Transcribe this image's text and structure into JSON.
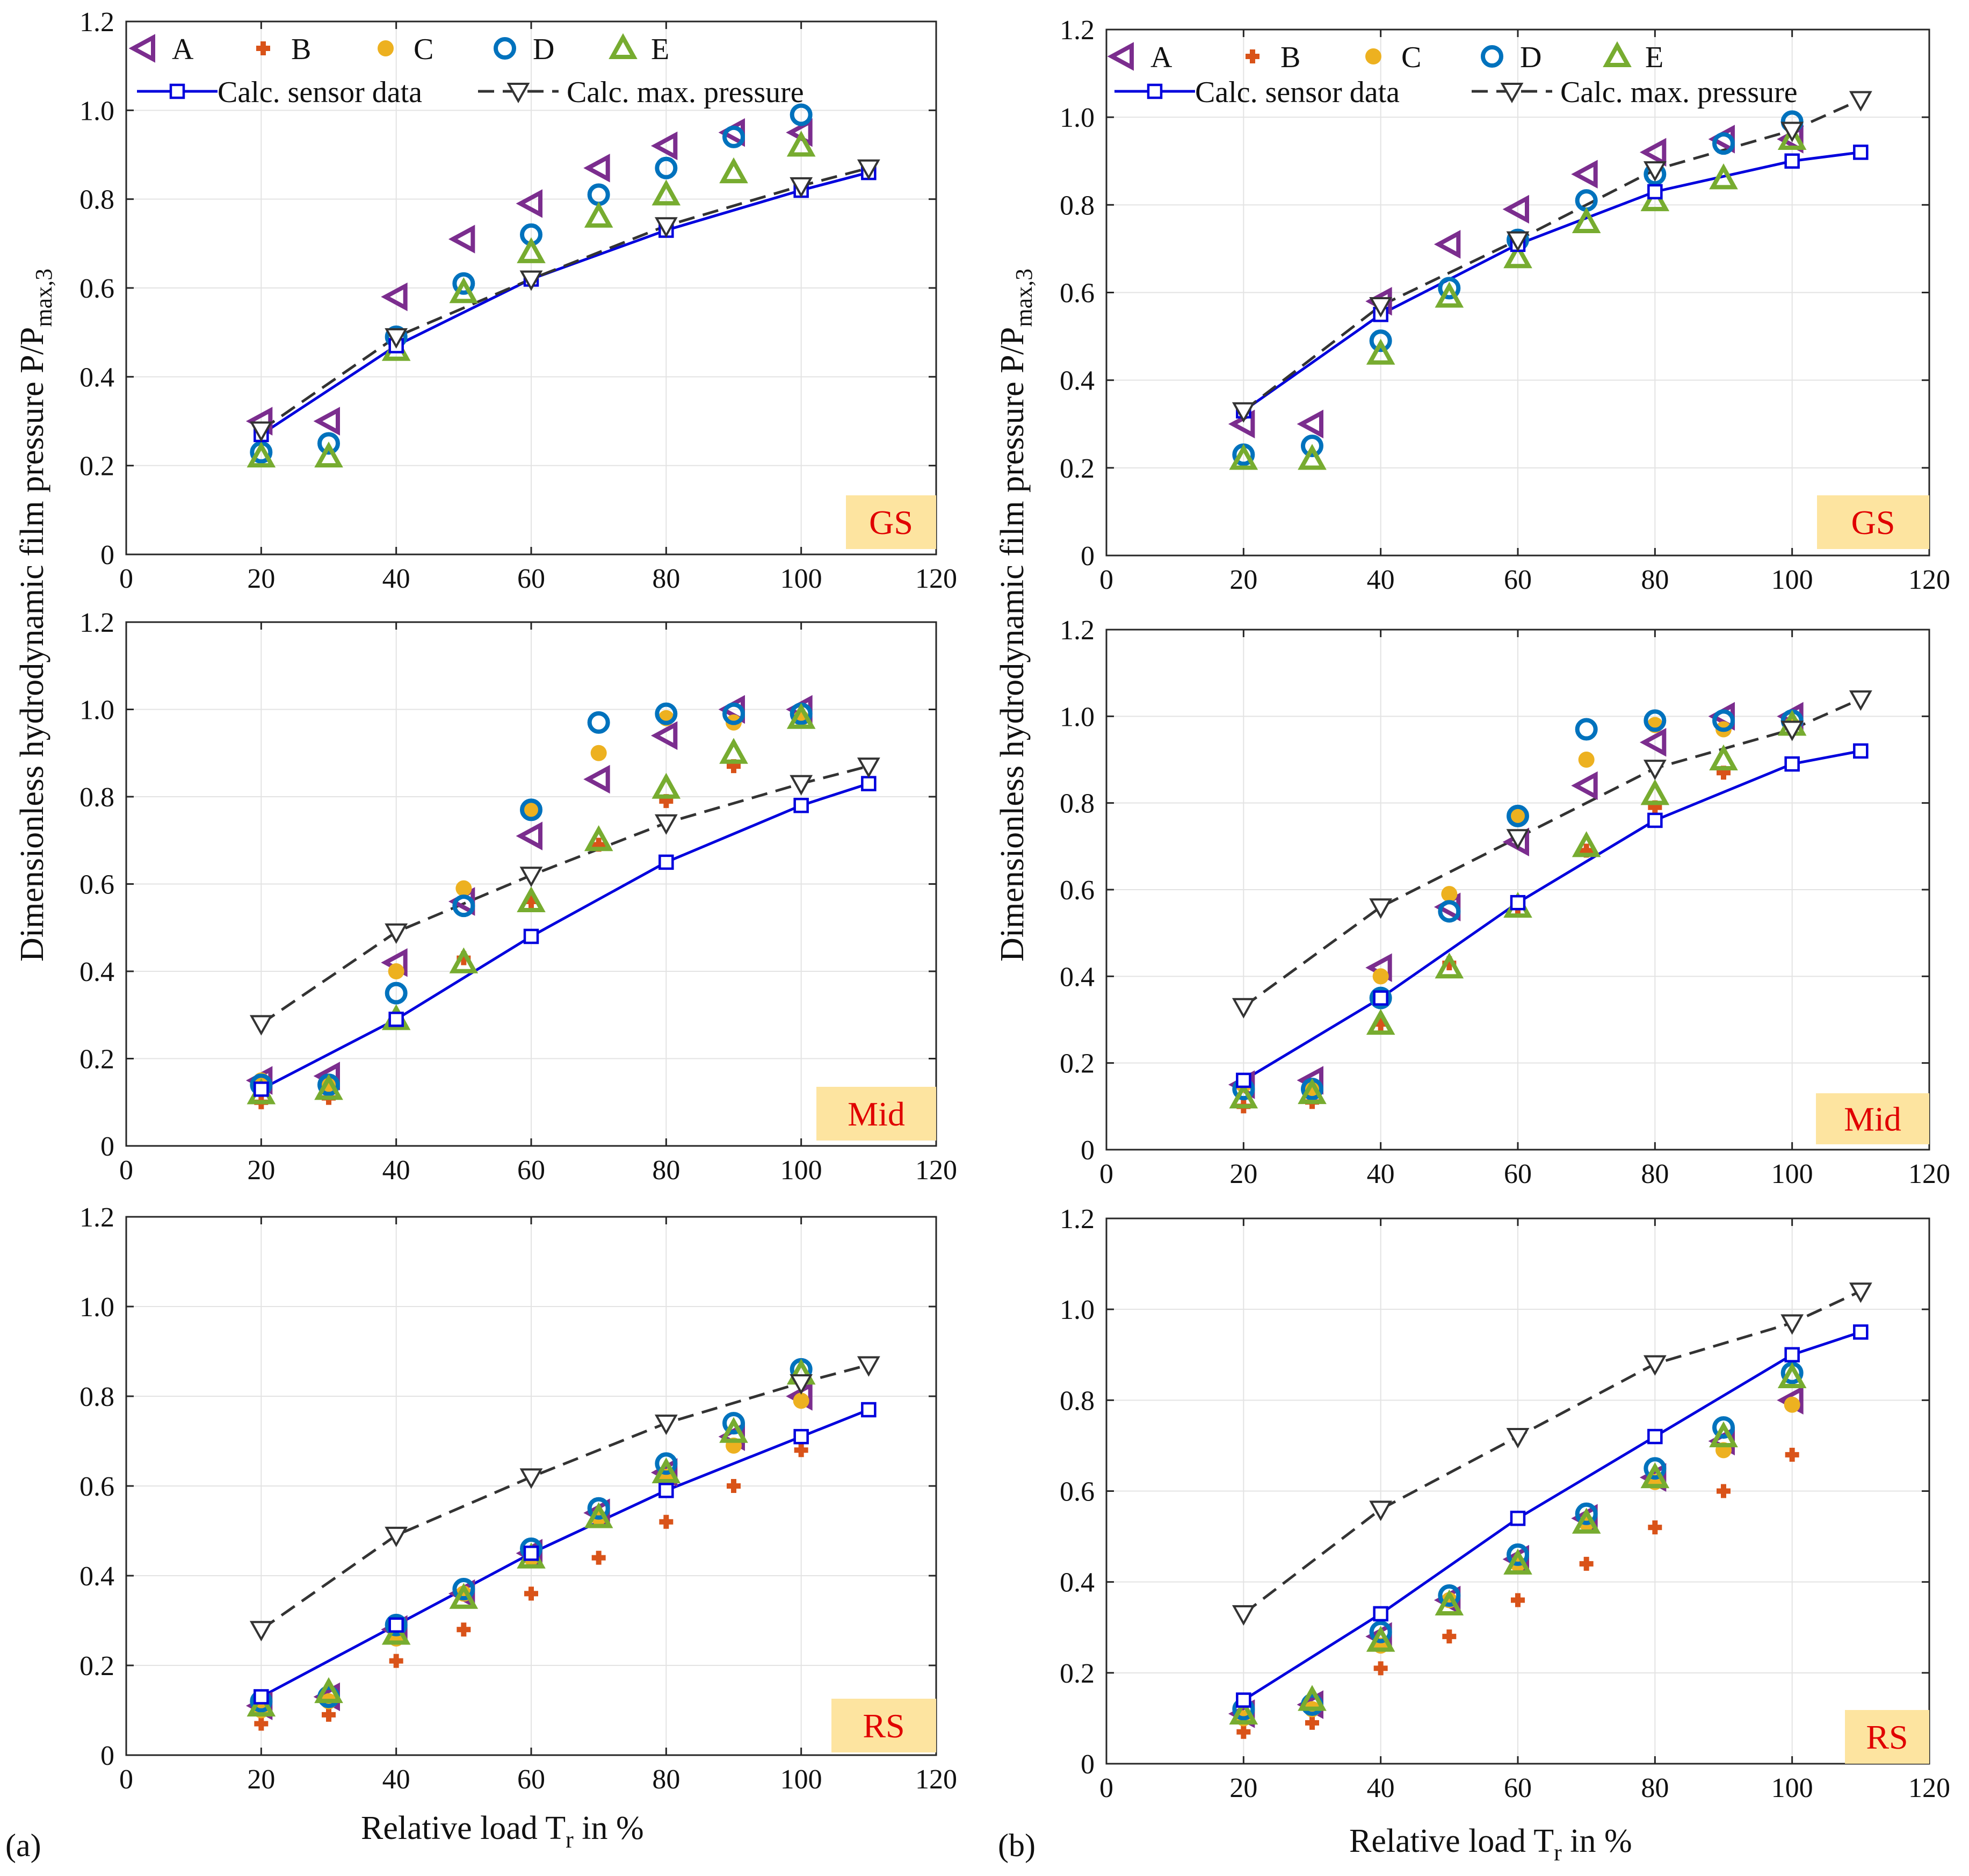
{
  "figure": {
    "panel_labels": [
      "(a)",
      "(b)"
    ],
    "ylabel_main": "Dimensionless hydrodynamic film pressure P/P",
    "ylabel_sub": "max,3",
    "xlabel_main": "Relative load T",
    "xlabel_sub": "r",
    "xlabel_tail": " in %"
  },
  "legend": {
    "markers": [
      {
        "label": "A",
        "color": "#7B2D8E",
        "symbol": "triangle-left"
      },
      {
        "label": "B",
        "color": "#D95319",
        "symbol": "plus"
      },
      {
        "label": "C",
        "color": "#EDB120",
        "symbol": "circle-filled"
      },
      {
        "label": "D",
        "color": "#0072BD",
        "symbol": "circle-open"
      },
      {
        "label": "E",
        "color": "#77AC30",
        "symbol": "triangle-up"
      }
    ],
    "lines": [
      {
        "label": "Calc. sensor data",
        "color": "#0000DD",
        "symbol": "square",
        "style": "solid"
      },
      {
        "label": "Calc. max. pressure",
        "color": "#333333",
        "symbol": "triangle-down",
        "style": "dashed"
      }
    ]
  },
  "colors": {
    "A": "#7B2D8E",
    "B": "#D95319",
    "C": "#EDB120",
    "D": "#0072BD",
    "E": "#77AC30",
    "sensor": "#0000DD",
    "maxp": "#333333",
    "badge_bg": "#FDE4A0",
    "badge_text": "#E00000"
  },
  "chart_data": [
    {
      "type": "scatter",
      "panel": "(a)",
      "title": "GS",
      "region": "GS",
      "xlim": [
        0,
        120
      ],
      "ylim": [
        0,
        1.2
      ],
      "xticks": [
        0,
        20,
        40,
        60,
        80,
        100,
        120
      ],
      "yticks": [
        0,
        0.2,
        0.4,
        0.6,
        0.8,
        1.0,
        1.2
      ],
      "ytick_labels": [
        "0",
        "0.2",
        "0.4",
        "0.6",
        "0.8",
        "1.0",
        "1.2"
      ],
      "series": [
        {
          "name": "A",
          "x": [
            20,
            30,
            40,
            50,
            60,
            70,
            80,
            90,
            100
          ],
          "y": [
            0.3,
            0.3,
            0.58,
            0.71,
            0.79,
            0.87,
            0.92,
            0.95,
            0.95
          ]
        },
        {
          "name": "B",
          "x": [],
          "y": []
        },
        {
          "name": "C",
          "x": [],
          "y": []
        },
        {
          "name": "D",
          "x": [
            20,
            30,
            40,
            50,
            60,
            70,
            80,
            90,
            100
          ],
          "y": [
            0.23,
            0.25,
            0.49,
            0.61,
            0.72,
            0.81,
            0.87,
            0.94,
            0.99
          ]
        },
        {
          "name": "E",
          "x": [
            20,
            30,
            40,
            50,
            60,
            70,
            80,
            90,
            100
          ],
          "y": [
            0.22,
            0.22,
            0.46,
            0.59,
            0.68,
            0.76,
            0.81,
            0.86,
            0.92
          ]
        },
        {
          "name": "Calc. sensor data",
          "x": [
            20,
            40,
            60,
            80,
            100,
            110
          ],
          "y": [
            0.27,
            0.47,
            0.62,
            0.73,
            0.82,
            0.86
          ]
        },
        {
          "name": "Calc. max. pressure",
          "x": [
            20,
            40,
            60,
            80,
            100,
            110
          ],
          "y": [
            0.28,
            0.49,
            0.62,
            0.74,
            0.83,
            0.87
          ]
        }
      ]
    },
    {
      "type": "scatter",
      "panel": "(b)",
      "title": "GS",
      "region": "GS",
      "xlim": [
        0,
        120
      ],
      "ylim": [
        0,
        1.2
      ],
      "xticks": [
        0,
        20,
        40,
        60,
        80,
        100,
        120
      ],
      "yticks": [
        0,
        0.2,
        0.4,
        0.6,
        0.8,
        1.0,
        1.2
      ],
      "ytick_labels": [
        "0",
        "0.2",
        "0.4",
        "0.6",
        "0.8",
        "1.0",
        "1.2"
      ],
      "series": [
        {
          "name": "A",
          "x": [
            20,
            30,
            40,
            50,
            60,
            70,
            80,
            90,
            100
          ],
          "y": [
            0.3,
            0.3,
            0.58,
            0.71,
            0.79,
            0.87,
            0.92,
            0.95,
            0.95
          ]
        },
        {
          "name": "B",
          "x": [],
          "y": []
        },
        {
          "name": "C",
          "x": [],
          "y": []
        },
        {
          "name": "D",
          "x": [
            20,
            30,
            40,
            50,
            60,
            70,
            80,
            90,
            100
          ],
          "y": [
            0.23,
            0.25,
            0.49,
            0.61,
            0.72,
            0.81,
            0.87,
            0.94,
            0.99
          ]
        },
        {
          "name": "E",
          "x": [
            20,
            30,
            40,
            50,
            60,
            70,
            80,
            90,
            100
          ],
          "y": [
            0.22,
            0.22,
            0.46,
            0.59,
            0.68,
            0.76,
            0.81,
            0.86,
            0.95
          ]
        },
        {
          "name": "Calc. sensor data",
          "x": [
            20,
            40,
            60,
            80,
            100,
            110
          ],
          "y": [
            0.33,
            0.55,
            0.71,
            0.83,
            0.9,
            0.92
          ]
        },
        {
          "name": "Calc. max. pressure",
          "x": [
            20,
            40,
            60,
            80,
            100,
            110
          ],
          "y": [
            0.33,
            0.57,
            0.72,
            0.88,
            0.97,
            1.04
          ]
        }
      ]
    },
    {
      "type": "scatter",
      "panel": "(a)",
      "title": "Mid",
      "region": "Mid",
      "xlim": [
        0,
        120
      ],
      "ylim": [
        0,
        1.2
      ],
      "xticks": [
        0,
        20,
        40,
        60,
        80,
        100,
        120
      ],
      "yticks": [
        0,
        0.2,
        0.4,
        0.6,
        0.8,
        1.0,
        1.2
      ],
      "ytick_labels": [
        "0",
        "0.2",
        "0.4",
        "0.6",
        "0.8",
        "1.0",
        "1.2"
      ],
      "series": [
        {
          "name": "A",
          "x": [
            20,
            30,
            40,
            50,
            60,
            70,
            80,
            90,
            100
          ],
          "y": [
            0.15,
            0.16,
            0.42,
            0.56,
            0.71,
            0.84,
            0.94,
            1.0,
            1.0
          ]
        },
        {
          "name": "B",
          "x": [
            20,
            30,
            40,
            50,
            60,
            70,
            80,
            90,
            100
          ],
          "y": [
            0.1,
            0.11,
            0.29,
            0.43,
            0.56,
            0.69,
            0.79,
            0.87,
            0.98
          ]
        },
        {
          "name": "C",
          "x": [
            20,
            30,
            40,
            50,
            60,
            70,
            80,
            90,
            100
          ],
          "y": [
            0.15,
            0.14,
            0.4,
            0.59,
            0.77,
            0.9,
            0.98,
            0.97,
            0.98
          ]
        },
        {
          "name": "D",
          "x": [
            20,
            30,
            40,
            50,
            60,
            70,
            80,
            90,
            100
          ],
          "y": [
            0.14,
            0.14,
            0.35,
            0.55,
            0.77,
            0.97,
            0.99,
            0.99,
            0.99
          ]
        },
        {
          "name": "E",
          "x": [
            20,
            30,
            40,
            50,
            60,
            70,
            80,
            90,
            100
          ],
          "y": [
            0.12,
            0.13,
            0.29,
            0.42,
            0.56,
            0.7,
            0.82,
            0.9,
            0.98
          ]
        },
        {
          "name": "Calc. sensor data",
          "x": [
            20,
            40,
            60,
            80,
            100,
            110
          ],
          "y": [
            0.13,
            0.29,
            0.48,
            0.65,
            0.78,
            0.83
          ]
        },
        {
          "name": "Calc. max. pressure",
          "x": [
            20,
            40,
            60,
            80,
            100,
            110
          ],
          "y": [
            0.28,
            0.49,
            0.62,
            0.74,
            0.83,
            0.87
          ]
        }
      ]
    },
    {
      "type": "scatter",
      "panel": "(b)",
      "title": "Mid",
      "region": "Mid",
      "xlim": [
        0,
        120
      ],
      "ylim": [
        0,
        1.2
      ],
      "xticks": [
        0,
        20,
        40,
        60,
        80,
        100,
        120
      ],
      "yticks": [
        0,
        0.2,
        0.4,
        0.6,
        0.8,
        1.0,
        1.2
      ],
      "ytick_labels": [
        "0",
        "0.2",
        "0.4",
        "0.6",
        "0.8",
        "1.0",
        "1.2"
      ],
      "series": [
        {
          "name": "A",
          "x": [
            20,
            30,
            40,
            50,
            60,
            70,
            80,
            90,
            100
          ],
          "y": [
            0.15,
            0.16,
            0.42,
            0.56,
            0.71,
            0.84,
            0.94,
            1.0,
            1.0
          ]
        },
        {
          "name": "B",
          "x": [
            20,
            30,
            40,
            50,
            60,
            70,
            80,
            90,
            100
          ],
          "y": [
            0.1,
            0.11,
            0.29,
            0.43,
            0.56,
            0.69,
            0.79,
            0.87,
            0.98
          ]
        },
        {
          "name": "C",
          "x": [
            20,
            30,
            40,
            50,
            60,
            70,
            80,
            90,
            100
          ],
          "y": [
            0.15,
            0.14,
            0.4,
            0.59,
            0.77,
            0.9,
            0.98,
            0.97,
            0.98
          ]
        },
        {
          "name": "D",
          "x": [
            20,
            30,
            40,
            50,
            60,
            70,
            80,
            90,
            100
          ],
          "y": [
            0.14,
            0.14,
            0.35,
            0.55,
            0.77,
            0.97,
            0.99,
            0.99,
            0.99
          ]
        },
        {
          "name": "E",
          "x": [
            20,
            30,
            40,
            50,
            60,
            70,
            80,
            90,
            100
          ],
          "y": [
            0.12,
            0.13,
            0.29,
            0.42,
            0.56,
            0.7,
            0.82,
            0.9,
            0.98
          ]
        },
        {
          "name": "Calc. sensor data",
          "x": [
            20,
            40,
            60,
            80,
            100,
            110
          ],
          "y": [
            0.16,
            0.35,
            0.57,
            0.76,
            0.89,
            0.92
          ]
        },
        {
          "name": "Calc. max. pressure",
          "x": [
            20,
            40,
            60,
            80,
            100,
            110
          ],
          "y": [
            0.33,
            0.56,
            0.72,
            0.88,
            0.97,
            1.04
          ]
        }
      ]
    },
    {
      "type": "scatter",
      "panel": "(a)",
      "title": "RS",
      "region": "RS",
      "xlim": [
        0,
        120
      ],
      "ylim": [
        0,
        1.2
      ],
      "xticks": [
        0,
        20,
        40,
        60,
        80,
        100,
        120
      ],
      "yticks": [
        0,
        0.2,
        0.4,
        0.6,
        0.8,
        1.0,
        1.2
      ],
      "ytick_labels": [
        "0",
        "0.2",
        "0.4",
        "0.6",
        "0.8",
        "1.0",
        "1.2"
      ],
      "series": [
        {
          "name": "A",
          "x": [
            20,
            30,
            40,
            50,
            60,
            70,
            80,
            90,
            100
          ],
          "y": [
            0.11,
            0.13,
            0.28,
            0.36,
            0.45,
            0.54,
            0.63,
            0.71,
            0.8
          ]
        },
        {
          "name": "B",
          "x": [
            20,
            30,
            40,
            50,
            60,
            70,
            80,
            90,
            100
          ],
          "y": [
            0.07,
            0.09,
            0.21,
            0.28,
            0.36,
            0.44,
            0.52,
            0.6,
            0.68
          ]
        },
        {
          "name": "C",
          "x": [
            20,
            30,
            40,
            50,
            60,
            70,
            80,
            90,
            100
          ],
          "y": [
            0.1,
            0.12,
            0.26,
            0.36,
            0.44,
            0.53,
            0.62,
            0.69,
            0.79
          ]
        },
        {
          "name": "D",
          "x": [
            20,
            30,
            40,
            50,
            60,
            70,
            80,
            90,
            100
          ],
          "y": [
            0.12,
            0.13,
            0.29,
            0.37,
            0.46,
            0.55,
            0.65,
            0.74,
            0.86
          ]
        },
        {
          "name": "E",
          "x": [
            20,
            30,
            40,
            50,
            60,
            70,
            80,
            90,
            100
          ],
          "y": [
            0.11,
            0.14,
            0.27,
            0.35,
            0.44,
            0.53,
            0.63,
            0.72,
            0.85
          ]
        },
        {
          "name": "Calc. sensor data",
          "x": [
            20,
            40,
            60,
            80,
            100,
            110
          ],
          "y": [
            0.13,
            0.29,
            0.45,
            0.59,
            0.71,
            0.77
          ]
        },
        {
          "name": "Calc. max. pressure",
          "x": [
            20,
            40,
            60,
            80,
            100,
            110
          ],
          "y": [
            0.28,
            0.49,
            0.62,
            0.74,
            0.83,
            0.87
          ]
        }
      ]
    },
    {
      "type": "scatter",
      "panel": "(b)",
      "title": "RS",
      "region": "RS",
      "xlim": [
        0,
        120
      ],
      "ylim": [
        0,
        1.2
      ],
      "xticks": [
        0,
        20,
        40,
        60,
        80,
        100,
        120
      ],
      "yticks": [
        0,
        0.2,
        0.4,
        0.6,
        0.8,
        1.0,
        1.2
      ],
      "ytick_labels": [
        "0",
        "0.2",
        "0.4",
        "0.6",
        "0.8",
        "1.0",
        "1.2"
      ],
      "series": [
        {
          "name": "A",
          "x": [
            20,
            30,
            40,
            50,
            60,
            70,
            80,
            90,
            100
          ],
          "y": [
            0.11,
            0.13,
            0.28,
            0.36,
            0.45,
            0.54,
            0.63,
            0.71,
            0.8
          ]
        },
        {
          "name": "B",
          "x": [
            20,
            30,
            40,
            50,
            60,
            70,
            80,
            90,
            100
          ],
          "y": [
            0.07,
            0.09,
            0.21,
            0.28,
            0.36,
            0.44,
            0.52,
            0.6,
            0.68
          ]
        },
        {
          "name": "C",
          "x": [
            20,
            30,
            40,
            50,
            60,
            70,
            80,
            90,
            100
          ],
          "y": [
            0.1,
            0.12,
            0.26,
            0.36,
            0.44,
            0.53,
            0.62,
            0.69,
            0.79
          ]
        },
        {
          "name": "D",
          "x": [
            20,
            30,
            40,
            50,
            60,
            70,
            80,
            90,
            100
          ],
          "y": [
            0.12,
            0.13,
            0.29,
            0.37,
            0.46,
            0.55,
            0.65,
            0.74,
            0.86
          ]
        },
        {
          "name": "E",
          "x": [
            20,
            30,
            40,
            50,
            60,
            70,
            80,
            90,
            100
          ],
          "y": [
            0.11,
            0.14,
            0.27,
            0.35,
            0.44,
            0.53,
            0.63,
            0.72,
            0.85
          ]
        },
        {
          "name": "Calc. sensor data",
          "x": [
            20,
            40,
            60,
            80,
            100,
            110
          ],
          "y": [
            0.14,
            0.33,
            0.54,
            0.72,
            0.9,
            0.95
          ]
        },
        {
          "name": "Calc. max. pressure",
          "x": [
            20,
            40,
            60,
            80,
            100,
            110
          ],
          "y": [
            0.33,
            0.56,
            0.72,
            0.88,
            0.97,
            1.04
          ]
        }
      ]
    }
  ]
}
